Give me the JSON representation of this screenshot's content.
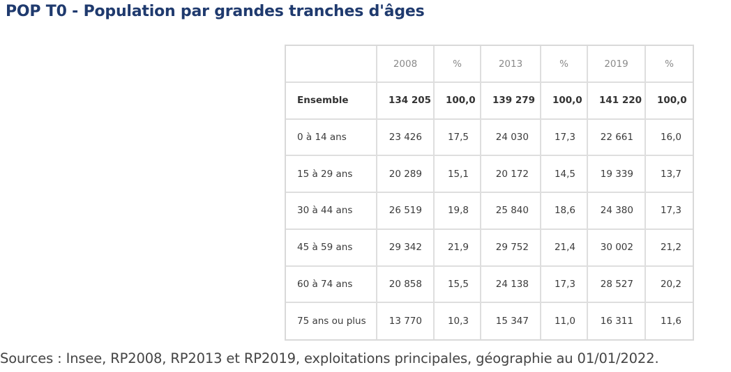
{
  "title": "POP T0 - Population par grandes tranches d'âges",
  "table": {
    "headers": [
      "",
      "2008",
      "%",
      "2013",
      "%",
      "2019",
      "%"
    ],
    "rows": [
      {
        "label": "Ensemble",
        "cells": [
          "134 205",
          "100,0",
          "139 279",
          "100,0",
          "141 220",
          "100,0"
        ]
      },
      {
        "label": "0 à 14 ans",
        "cells": [
          "23 426",
          "17,5",
          "24 030",
          "17,3",
          "22 661",
          "16,0"
        ]
      },
      {
        "label": "15 à 29 ans",
        "cells": [
          "20 289",
          "15,1",
          "20 172",
          "14,5",
          "19 339",
          "13,7"
        ]
      },
      {
        "label": "30 à 44 ans",
        "cells": [
          "26 519",
          "19,8",
          "25 840",
          "18,6",
          "24 380",
          "17,3"
        ]
      },
      {
        "label": "45 à 59 ans",
        "cells": [
          "29 342",
          "21,9",
          "29 752",
          "21,4",
          "30 002",
          "21,2"
        ]
      },
      {
        "label": "60 à 74 ans",
        "cells": [
          "20 858",
          "15,5",
          "24 138",
          "17,3",
          "28 527",
          "20,2"
        ]
      },
      {
        "label": "75 ans ou plus",
        "cells": [
          "13 770",
          "10,3",
          "15 347",
          "11,0",
          "16 311",
          "11,6"
        ]
      }
    ]
  },
  "sources": "Sources : Insee, RP2008, RP2013 et RP2019, exploitations principales, géographie au 01/01/2022."
}
